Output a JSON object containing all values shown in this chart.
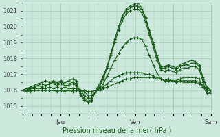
{
  "title": "",
  "xlabel": "Pression niveau de la mer( hPa )",
  "ylabel": "",
  "bg_color": "#cce8dc",
  "grid_color": "#a0c8b8",
  "line_color": "#1a5c1a",
  "xtick_labels": [
    "",
    "Jeu",
    "",
    "Ven",
    "",
    "Sam"
  ],
  "xtick_positions": [
    0,
    24,
    48,
    72,
    96,
    120
  ],
  "ylim": [
    1014.5,
    1021.5
  ],
  "yticks": [
    1015,
    1016,
    1017,
    1018,
    1019,
    1020,
    1021
  ],
  "series": [
    [
      1016.0,
      1016.1,
      1016.2,
      1016.3,
      1016.4,
      1016.5,
      1016.6,
      1016.5,
      1016.6,
      1016.5,
      1016.6,
      1016.5,
      1016.6,
      1016.7,
      1016.6,
      1015.7,
      1015.4,
      1015.2,
      1015.3,
      1016.0,
      1016.4,
      1016.9,
      1017.5,
      1018.3,
      1019.2,
      1020.0,
      1020.7,
      1021.1,
      1021.3,
      1021.4,
      1021.5,
      1021.2,
      1020.6,
      1019.8,
      1019.0,
      1018.2,
      1017.5,
      1017.5,
      1017.6,
      1017.5,
      1017.4,
      1017.6,
      1017.7,
      1017.8,
      1017.9,
      1017.8,
      1017.6,
      1016.8,
      1016.2,
      1016.0
    ],
    [
      1016.0,
      1016.1,
      1016.1,
      1016.2,
      1016.3,
      1016.4,
      1016.3,
      1016.4,
      1016.5,
      1016.4,
      1016.5,
      1016.4,
      1016.4,
      1016.5,
      1016.4,
      1015.8,
      1015.5,
      1015.3,
      1015.4,
      1015.9,
      1016.3,
      1016.8,
      1017.5,
      1018.3,
      1019.2,
      1020.0,
      1020.6,
      1021.0,
      1021.2,
      1021.3,
      1021.3,
      1021.1,
      1020.5,
      1019.7,
      1018.9,
      1018.1,
      1017.4,
      1017.4,
      1017.5,
      1017.4,
      1017.3,
      1017.5,
      1017.6,
      1017.6,
      1017.7,
      1017.7,
      1017.5,
      1016.7,
      1016.1,
      1015.9
    ],
    [
      1016.0,
      1016.0,
      1016.1,
      1016.2,
      1016.3,
      1016.2,
      1016.3,
      1016.4,
      1016.4,
      1016.3,
      1016.4,
      1016.3,
      1016.3,
      1016.4,
      1016.3,
      1016.0,
      1015.7,
      1015.5,
      1015.5,
      1015.9,
      1016.2,
      1016.7,
      1017.4,
      1018.2,
      1019.0,
      1019.8,
      1020.4,
      1020.8,
      1021.0,
      1021.1,
      1021.1,
      1020.9,
      1020.3,
      1019.5,
      1018.7,
      1017.9,
      1017.3,
      1017.2,
      1017.3,
      1017.2,
      1017.1,
      1017.3,
      1017.4,
      1017.4,
      1017.5,
      1017.5,
      1017.3,
      1016.5,
      1015.9,
      1015.8
    ],
    [
      1016.0,
      1016.0,
      1016.1,
      1016.1,
      1016.1,
      1016.1,
      1016.1,
      1016.2,
      1016.1,
      1016.2,
      1016.1,
      1016.2,
      1016.1,
      1016.1,
      1016.1,
      1016.0,
      1015.9,
      1015.7,
      1015.7,
      1015.9,
      1016.1,
      1016.4,
      1016.9,
      1017.4,
      1017.9,
      1018.3,
      1018.7,
      1019.0,
      1019.2,
      1019.3,
      1019.3,
      1019.2,
      1018.8,
      1018.2,
      1017.6,
      1017.1,
      1016.7,
      1016.6,
      1016.7,
      1016.6,
      1016.6,
      1016.7,
      1016.8,
      1016.8,
      1016.8,
      1016.8,
      1016.7,
      1016.2,
      1015.8,
      1015.8
    ],
    [
      1016.0,
      1015.9,
      1016.0,
      1016.0,
      1016.0,
      1016.0,
      1016.0,
      1016.0,
      1016.0,
      1016.0,
      1016.0,
      1016.0,
      1016.0,
      1016.0,
      1016.0,
      1016.0,
      1016.0,
      1015.9,
      1015.9,
      1016.0,
      1016.0,
      1016.2,
      1016.4,
      1016.6,
      1016.8,
      1016.9,
      1017.0,
      1017.1,
      1017.1,
      1017.1,
      1017.1,
      1017.1,
      1017.0,
      1017.0,
      1016.9,
      1016.8,
      1016.7,
      1016.6,
      1016.6,
      1016.6,
      1016.5,
      1016.6,
      1016.6,
      1016.6,
      1016.6,
      1016.6,
      1016.5,
      1016.3,
      1016.0,
      1016.0
    ],
    [
      1016.0,
      1015.9,
      1015.9,
      1016.0,
      1016.0,
      1016.0,
      1016.0,
      1016.0,
      1016.0,
      1015.9,
      1016.0,
      1015.9,
      1016.0,
      1015.9,
      1016.0,
      1016.0,
      1016.0,
      1015.9,
      1015.9,
      1016.0,
      1016.0,
      1016.1,
      1016.2,
      1016.3,
      1016.4,
      1016.5,
      1016.6,
      1016.7,
      1016.7,
      1016.8,
      1016.8,
      1016.8,
      1016.8,
      1016.8,
      1016.8,
      1016.7,
      1016.7,
      1016.6,
      1016.6,
      1016.6,
      1016.5,
      1016.6,
      1016.5,
      1016.5,
      1016.5,
      1016.5,
      1016.4,
      1016.2,
      1016.0,
      1016.0
    ]
  ],
  "n_points": 50,
  "x_start": 0,
  "x_end": 120
}
